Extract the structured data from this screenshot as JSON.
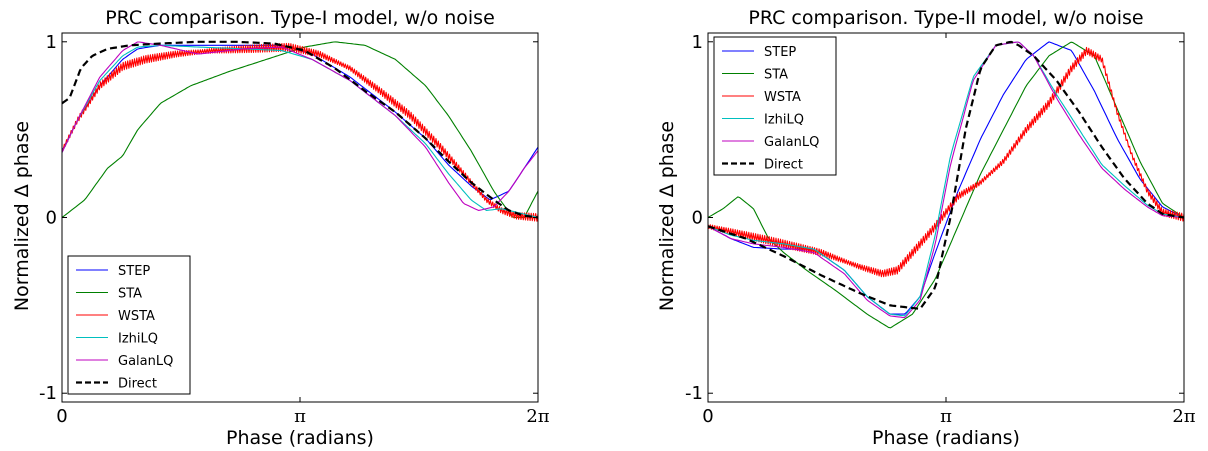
{
  "chart_data": [
    {
      "type": "line",
      "title": "PRC comparison. Type-I model, w/o noise",
      "xlabel": "Phase (radians)",
      "ylabel": "Normalized Δ phase",
      "xlim": [
        0,
        6.2832
      ],
      "ylim": [
        -1.05,
        1.05
      ],
      "xticks": [
        {
          "value": 0,
          "label": "0"
        },
        {
          "value": 3.1416,
          "label": "π"
        },
        {
          "value": 6.2832,
          "label": "2π"
        }
      ],
      "yticks": [
        {
          "value": -1,
          "label": "-1"
        },
        {
          "value": 0,
          "label": "0"
        },
        {
          "value": 1,
          "label": "1"
        }
      ],
      "legend_position": "lower-left",
      "grid": false,
      "series": [
        {
          "name": "STEP",
          "color": "#0000ff",
          "style": "solid",
          "x": [
            0,
            0.2,
            0.5,
            0.8,
            1.0,
            1.3,
            1.8,
            2.4,
            2.9,
            3.3,
            3.8,
            4.4,
            4.8,
            5.1,
            5.4,
            5.65,
            5.9,
            6.1,
            6.2832
          ],
          "y": [
            0.38,
            0.55,
            0.75,
            0.9,
            0.96,
            0.98,
            0.98,
            0.98,
            0.98,
            0.93,
            0.8,
            0.6,
            0.45,
            0.3,
            0.18,
            0.1,
            0.15,
            0.28,
            0.4
          ]
        },
        {
          "name": "STA",
          "color": "#008000",
          "style": "solid",
          "x": [
            0,
            0.3,
            0.6,
            0.8,
            1.0,
            1.3,
            1.7,
            2.2,
            2.7,
            3.2,
            3.6,
            4.0,
            4.4,
            4.8,
            5.1,
            5.4,
            5.7,
            5.95,
            6.1,
            6.2832
          ],
          "y": [
            0.0,
            0.1,
            0.28,
            0.35,
            0.5,
            0.65,
            0.75,
            0.83,
            0.9,
            0.97,
            1.0,
            0.98,
            0.9,
            0.75,
            0.58,
            0.38,
            0.15,
            0.0,
            0.0,
            0.15
          ]
        },
        {
          "name": "WSTA",
          "color": "#ff0000",
          "style": "noisy",
          "x": [
            0,
            0.2,
            0.5,
            0.8,
            1.1,
            1.5,
            2.0,
            2.5,
            3.0,
            3.4,
            3.8,
            4.2,
            4.6,
            5.0,
            5.3,
            5.6,
            5.8,
            6.0,
            6.2832
          ],
          "y": [
            0.38,
            0.55,
            0.75,
            0.86,
            0.9,
            0.93,
            0.95,
            0.96,
            0.97,
            0.93,
            0.85,
            0.72,
            0.58,
            0.4,
            0.25,
            0.1,
            0.04,
            0.01,
            0.0
          ]
        },
        {
          "name": "IzhiLQ",
          "color": "#00bfbf",
          "style": "solid",
          "x": [
            0,
            0.2,
            0.5,
            0.8,
            1.0,
            1.3,
            1.8,
            2.4,
            2.9,
            3.3,
            3.8,
            4.4,
            4.8,
            5.1,
            5.4,
            5.6,
            5.8,
            6.0,
            6.2832
          ],
          "y": [
            0.37,
            0.55,
            0.78,
            0.92,
            0.97,
            0.98,
            0.97,
            0.96,
            0.95,
            0.9,
            0.78,
            0.58,
            0.42,
            0.25,
            0.1,
            0.04,
            0.05,
            0.03,
            0.0
          ]
        },
        {
          "name": "GalanLQ",
          "color": "#bf00bf",
          "style": "solid",
          "x": [
            0,
            0.2,
            0.5,
            0.8,
            1.0,
            1.3,
            1.8,
            2.4,
            2.9,
            3.3,
            3.8,
            4.4,
            4.8,
            5.1,
            5.3,
            5.5,
            5.7,
            5.9,
            6.1,
            6.2832
          ],
          "y": [
            0.37,
            0.55,
            0.8,
            0.95,
            1.0,
            0.98,
            0.93,
            0.96,
            0.97,
            0.9,
            0.78,
            0.58,
            0.4,
            0.2,
            0.08,
            0.04,
            0.06,
            0.15,
            0.28,
            0.38
          ]
        },
        {
          "name": "Direct",
          "color": "#000000",
          "style": "dashed",
          "x": [
            0,
            0.1,
            0.25,
            0.4,
            0.6,
            0.9,
            1.3,
            1.8,
            2.3,
            2.8,
            3.2,
            3.6,
            4.0,
            4.4,
            4.8,
            5.1,
            5.4,
            5.7,
            5.9,
            6.1,
            6.2832
          ],
          "y": [
            0.65,
            0.68,
            0.85,
            0.92,
            0.96,
            0.98,
            0.99,
            1.0,
            1.0,
            0.99,
            0.95,
            0.85,
            0.72,
            0.6,
            0.45,
            0.32,
            0.2,
            0.1,
            0.04,
            0.01,
            0.0
          ]
        }
      ]
    },
    {
      "type": "line",
      "title": "PRC comparison. Type-II model, w/o noise",
      "xlabel": "Phase (radians)",
      "ylabel": "Normalized Δ phase",
      "xlim": [
        0,
        6.2832
      ],
      "ylim": [
        -1.05,
        1.05
      ],
      "xticks": [
        {
          "value": 0,
          "label": "0"
        },
        {
          "value": 3.1416,
          "label": "π"
        },
        {
          "value": 6.2832,
          "label": "2π"
        }
      ],
      "yticks": [
        {
          "value": -1,
          "label": "-1"
        },
        {
          "value": 0,
          "label": "0"
        },
        {
          "value": 1,
          "label": "1"
        }
      ],
      "legend_position": "top-left",
      "grid": false,
      "series": [
        {
          "name": "STEP",
          "color": "#0000ff",
          "style": "solid",
          "x": [
            0,
            0.3,
            0.6,
            1.0,
            1.4,
            1.8,
            2.1,
            2.4,
            2.6,
            2.8,
            3.0,
            3.3,
            3.6,
            3.9,
            4.2,
            4.5,
            4.8,
            5.1,
            5.4,
            5.7,
            6.0,
            6.2832
          ],
          "y": [
            -0.05,
            -0.12,
            -0.17,
            -0.18,
            -0.18,
            -0.3,
            -0.45,
            -0.55,
            -0.55,
            -0.45,
            -0.2,
            0.15,
            0.45,
            0.7,
            0.9,
            1.0,
            0.95,
            0.72,
            0.45,
            0.22,
            0.06,
            0.0
          ]
        },
        {
          "name": "STA",
          "color": "#008000",
          "style": "solid",
          "x": [
            0,
            0.2,
            0.4,
            0.6,
            0.8,
            1.0,
            1.3,
            1.7,
            2.1,
            2.4,
            2.7,
            3.0,
            3.3,
            3.6,
            3.9,
            4.2,
            4.5,
            4.8,
            5.1,
            5.4,
            5.7,
            6.0,
            6.2832
          ],
          "y": [
            0.0,
            0.05,
            0.12,
            0.05,
            -0.12,
            -0.2,
            -0.3,
            -0.42,
            -0.55,
            -0.63,
            -0.55,
            -0.35,
            -0.05,
            0.25,
            0.5,
            0.75,
            0.92,
            1.0,
            0.92,
            0.62,
            0.32,
            0.08,
            0.0
          ]
        },
        {
          "name": "WSTA",
          "color": "#ff0000",
          "style": "noisy",
          "x": [
            0,
            0.5,
            1.0,
            1.5,
            2.0,
            2.3,
            2.5,
            2.7,
            3.0,
            3.3,
            3.6,
            3.9,
            4.2,
            4.5,
            4.8,
            5.0,
            5.2,
            5.4,
            5.6,
            5.8,
            6.0,
            6.2832
          ],
          "y": [
            -0.05,
            -0.1,
            -0.15,
            -0.2,
            -0.28,
            -0.32,
            -0.3,
            -0.2,
            -0.05,
            0.12,
            0.2,
            0.32,
            0.5,
            0.65,
            0.85,
            0.95,
            0.9,
            0.6,
            0.35,
            0.15,
            0.03,
            0.0
          ]
        },
        {
          "name": "IzhiLQ",
          "color": "#00bfbf",
          "style": "solid",
          "x": [
            0,
            0.3,
            0.6,
            1.0,
            1.4,
            1.8,
            2.1,
            2.4,
            2.6,
            2.8,
            3.0,
            3.2,
            3.5,
            3.8,
            4.1,
            4.3,
            4.6,
            4.9,
            5.2,
            5.5,
            5.8,
            6.0,
            6.2832
          ],
          "y": [
            -0.05,
            -0.1,
            -0.13,
            -0.15,
            -0.18,
            -0.3,
            -0.45,
            -0.55,
            -0.56,
            -0.45,
            -0.1,
            0.35,
            0.8,
            0.98,
            1.0,
            0.92,
            0.7,
            0.5,
            0.3,
            0.18,
            0.07,
            0.02,
            0.0
          ]
        },
        {
          "name": "GalanLQ",
          "color": "#bf00bf",
          "style": "solid",
          "x": [
            0,
            0.3,
            0.6,
            1.0,
            1.4,
            1.8,
            2.1,
            2.4,
            2.6,
            2.8,
            3.0,
            3.2,
            3.5,
            3.8,
            4.1,
            4.3,
            4.6,
            4.9,
            5.2,
            5.5,
            5.8,
            6.0,
            6.2832
          ],
          "y": [
            -0.05,
            -0.12,
            -0.15,
            -0.17,
            -0.2,
            -0.32,
            -0.47,
            -0.56,
            -0.57,
            -0.47,
            -0.15,
            0.3,
            0.78,
            0.98,
            1.0,
            0.92,
            0.68,
            0.47,
            0.28,
            0.16,
            0.06,
            0.01,
            0.0
          ]
        },
        {
          "name": "Direct",
          "color": "#000000",
          "style": "dashed",
          "x": [
            0,
            0.5,
            1.0,
            1.5,
            2.0,
            2.4,
            2.8,
            3.0,
            3.2,
            3.4,
            3.6,
            3.8,
            4.0,
            4.1,
            4.3,
            4.6,
            4.9,
            5.2,
            5.5,
            5.8,
            6.0,
            6.2832
          ],
          "y": [
            -0.05,
            -0.12,
            -0.22,
            -0.33,
            -0.43,
            -0.5,
            -0.52,
            -0.4,
            0.0,
            0.5,
            0.85,
            0.98,
            1.0,
            0.98,
            0.92,
            0.78,
            0.6,
            0.4,
            0.22,
            0.08,
            0.02,
            0.0
          ]
        }
      ]
    }
  ]
}
